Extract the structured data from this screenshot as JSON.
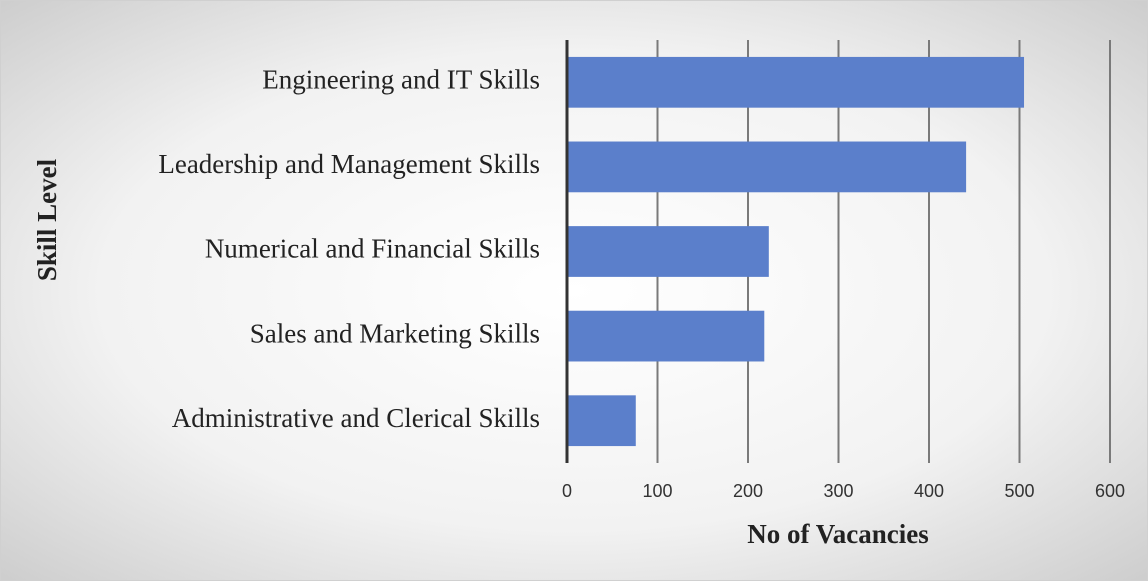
{
  "chart_data": {
    "type": "bar",
    "orientation": "horizontal",
    "categories": [
      "Engineering and IT Skills",
      "Leadership and Management Skills",
      "Numerical and Financial Skills",
      "Sales and Marketing Skills",
      "Administrative and Clerical Skills"
    ],
    "values": [
      505,
      441,
      223,
      218,
      76
    ],
    "color": "#5b7fcb",
    "xlabel": "No of Vacancies",
    "ylabel": "Skill Level",
    "xlim": [
      0,
      600
    ],
    "xticks": [
      0,
      100,
      200,
      300,
      400,
      500,
      600
    ],
    "grid": true
  }
}
